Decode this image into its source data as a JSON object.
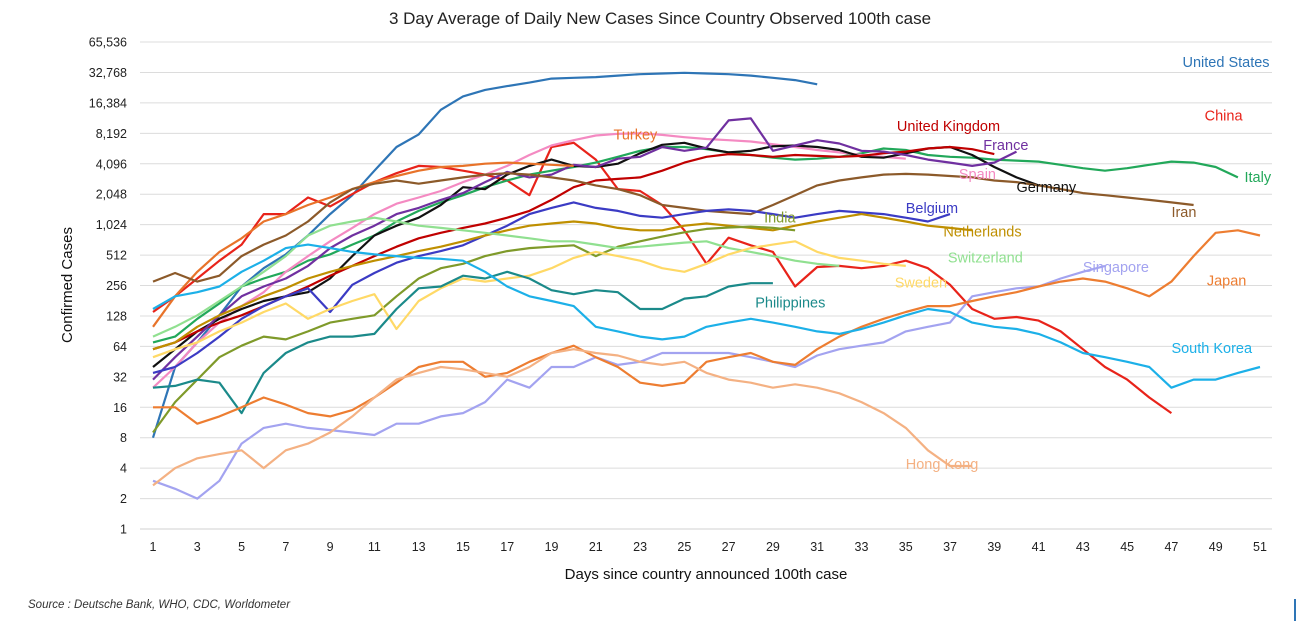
{
  "chart_data": {
    "type": "line",
    "title": "3 Day Average of Daily New Cases Since Country Observed 100th case",
    "xlabel": "Days since country announced 100th case",
    "ylabel": "Confirmed Cases",
    "y_scale": "log2",
    "ylim": [
      1,
      65536
    ],
    "xlim": [
      1,
      51
    ],
    "x_ticks": [
      "1",
      "3",
      "5",
      "7",
      "9",
      "11",
      "13",
      "15",
      "17",
      "19",
      "21",
      "23",
      "25",
      "27",
      "29",
      "31",
      "33",
      "35",
      "37",
      "39",
      "41",
      "43",
      "45",
      "47",
      "49",
      "51"
    ],
    "y_ticks": [
      {
        "value": 1,
        "label": "1"
      },
      {
        "value": 2,
        "label": "2"
      },
      {
        "value": 4,
        "label": "4"
      },
      {
        "value": 8,
        "label": "8"
      },
      {
        "value": 16,
        "label": "16"
      },
      {
        "value": 32,
        "label": "32"
      },
      {
        "value": 64,
        "label": "64"
      },
      {
        "value": 128,
        "label": "128"
      },
      {
        "value": 256,
        "label": "256"
      },
      {
        "value": 512,
        "label": "512"
      },
      {
        "value": 1024,
        "label": "1,024"
      },
      {
        "value": 2048,
        "label": "2,048"
      },
      {
        "value": 4096,
        "label": "4,096"
      },
      {
        "value": 8192,
        "label": "8,192"
      },
      {
        "value": 16384,
        "label": "16,384"
      },
      {
        "value": 32768,
        "label": "32,768"
      },
      {
        "value": 65536,
        "label": "65,536"
      }
    ],
    "grid": true,
    "series": [
      {
        "name": "United States",
        "color": "#2e75b6",
        "label_at": [
          47.5,
          37000
        ],
        "label_anchor": "start",
        "values": [
          8,
          40,
          70,
          130,
          250,
          380,
          520,
          800,
          1300,
          2000,
          3500,
          6000,
          8000,
          14000,
          19000,
          22000,
          24000,
          26000,
          28500,
          29000,
          29500,
          30500,
          31500,
          32000,
          32500,
          32000,
          31500,
          30500,
          29000,
          27500,
          25000
        ]
      },
      {
        "name": "China",
        "color": "#e8231a",
        "label_at": [
          48.5,
          11000
        ],
        "label_anchor": "start",
        "values": [
          140,
          200,
          300,
          450,
          650,
          1300,
          1300,
          1900,
          1550,
          2050,
          2700,
          3300,
          3900,
          3800,
          3500,
          3200,
          2800,
          2000,
          6000,
          6600,
          4500,
          2300,
          2200,
          1600,
          900,
          420,
          760,
          640,
          550,
          250,
          390,
          400,
          380,
          400,
          450,
          380,
          260,
          150,
          120,
          125,
          115,
          90,
          60,
          40,
          30,
          20,
          14
        ]
      },
      {
        "name": "Italy",
        "color": "#22a85a",
        "label_at": [
          50.3,
          2700
        ],
        "label_anchor": "start",
        "values": [
          70,
          80,
          120,
          170,
          250,
          300,
          350,
          450,
          520,
          650,
          800,
          1100,
          1400,
          1700,
          2000,
          2400,
          2800,
          3200,
          3500,
          3800,
          4200,
          4800,
          5500,
          6000,
          6000,
          5700,
          5300,
          5000,
          4700,
          4500,
          4600,
          4800,
          5200,
          5800,
          5600,
          5000,
          4800,
          4700,
          4500,
          4400,
          4300,
          4000,
          3700,
          3500,
          3700,
          4000,
          4300,
          4200,
          3800,
          3000
        ]
      },
      {
        "name": "Spain",
        "color": "#f48ac2",
        "label_at": [
          37.4,
          2900
        ],
        "label_anchor": "start",
        "values": [
          25,
          40,
          70,
          110,
          160,
          220,
          350,
          500,
          700,
          950,
          1300,
          1650,
          1900,
          2200,
          2700,
          3200,
          3900,
          5000,
          6200,
          7000,
          7800,
          8100,
          8200,
          7900,
          7500,
          7200,
          7000,
          6800,
          6400,
          6000,
          5600,
          5300,
          5000,
          4800,
          4600
        ]
      },
      {
        "name": "Germany",
        "color": "#111111",
        "label_at": [
          40,
          2150
        ],
        "label_anchor": "start",
        "values": [
          40,
          60,
          90,
          120,
          150,
          180,
          200,
          220,
          300,
          500,
          800,
          1000,
          1200,
          1600,
          2400,
          2300,
          3200,
          3900,
          4500,
          3900,
          3800,
          4100,
          5200,
          6300,
          6600,
          5800,
          5300,
          5500,
          6100,
          6200,
          6000,
          5600,
          4800,
          4700,
          5200,
          5800,
          6000,
          5000,
          3800,
          3000,
          2500
        ]
      },
      {
        "name": "United Kingdom",
        "color": "#c00000",
        "label_at": [
          34.6,
          8600
        ],
        "label_anchor": "start",
        "values": [
          60,
          70,
          90,
          110,
          130,
          160,
          200,
          250,
          320,
          400,
          500,
          620,
          750,
          850,
          950,
          1050,
          1200,
          1400,
          1800,
          2400,
          2800,
          2900,
          3000,
          3500,
          4200,
          4800,
          5100,
          5000,
          4800,
          5000,
          4900,
          4800,
          4900,
          5200,
          5400,
          5800,
          6000,
          5700,
          5100
        ]
      },
      {
        "name": "France",
        "color": "#7030a0",
        "label_at": [
          38.5,
          5600
        ],
        "label_anchor": "start",
        "values": [
          30,
          50,
          80,
          130,
          200,
          250,
          300,
          400,
          600,
          800,
          1000,
          1300,
          1500,
          1800,
          2100,
          2700,
          3400,
          3000,
          3200,
          4000,
          3800,
          4600,
          4800,
          6000,
          5500,
          5900,
          11000,
          11500,
          5500,
          6200,
          7000,
          6500,
          5500,
          5400,
          5000,
          4500,
          4200,
          3900,
          4200,
          5400
        ]
      },
      {
        "name": "Turkey",
        "color": "#e8732a",
        "label_at": [
          21.8,
          7100
        ],
        "label_anchor": "start",
        "values": [
          100,
          200,
          350,
          550,
          750,
          1100,
          1300,
          1600,
          1900,
          2300,
          2700,
          3100,
          3500,
          3800,
          3900,
          4100,
          4200,
          4100,
          4000,
          3900
        ]
      },
      {
        "name": "Iran",
        "color": "#8c5a2a",
        "label_at": [
          47,
          1220
        ],
        "label_anchor": "start",
        "values": [
          280,
          340,
          280,
          320,
          500,
          650,
          800,
          1100,
          1700,
          2300,
          2600,
          2800,
          2600,
          2800,
          3000,
          3200,
          3300,
          3200,
          3000,
          2800,
          2500,
          2300,
          2000,
          1600,
          1500,
          1400,
          1350,
          1300,
          1600,
          2000,
          2500,
          2800,
          3000,
          3200,
          3250,
          3200,
          3100,
          3000,
          2800,
          2700,
          2500,
          2300,
          2100,
          2000,
          1900,
          1800,
          1700,
          1600
        ]
      },
      {
        "name": "Belgium",
        "color": "#3b3bc4",
        "label_at": [
          35,
          1330
        ],
        "label_anchor": "start",
        "values": [
          35,
          40,
          55,
          80,
          120,
          160,
          200,
          240,
          140,
          260,
          340,
          430,
          500,
          560,
          640,
          800,
          1000,
          1300,
          1500,
          1700,
          1500,
          1400,
          1250,
          1200,
          1300,
          1400,
          1450,
          1400,
          1300,
          1200,
          1300,
          1400,
          1350,
          1300,
          1200,
          1100,
          1300
        ]
      },
      {
        "name": "Netherlands",
        "color": "#bf8f00",
        "label_at": [
          36.7,
          780
        ],
        "label_anchor": "start",
        "values": [
          60,
          70,
          100,
          130,
          160,
          200,
          240,
          300,
          350,
          400,
          450,
          500,
          560,
          620,
          700,
          800,
          900,
          1000,
          1050,
          1100,
          1050,
          950,
          900,
          900,
          1000,
          1050,
          1000,
          950,
          900,
          1000,
          1100,
          1200,
          1300,
          1200,
          1100,
          1000,
          950,
          900
        ]
      },
      {
        "name": "India",
        "color": "#7f9a2a",
        "label_at": [
          28.6,
          1080
        ],
        "label_anchor": "start",
        "values": [
          9,
          18,
          30,
          50,
          65,
          80,
          75,
          90,
          110,
          120,
          130,
          200,
          300,
          380,
          420,
          500,
          560,
          600,
          620,
          640,
          500,
          620,
          700,
          780,
          860,
          930,
          960,
          980,
          950,
          900
        ]
      },
      {
        "name": "Switzerland",
        "color": "#90e090",
        "label_at": [
          36.9,
          430
        ],
        "label_anchor": "start",
        "values": [
          80,
          100,
          130,
          180,
          250,
          350,
          500,
          800,
          1000,
          1100,
          1200,
          1100,
          1000,
          950,
          900,
          850,
          800,
          750,
          700,
          700,
          650,
          600,
          620,
          650,
          680,
          700,
          600,
          550,
          500,
          450,
          420,
          400
        ]
      },
      {
        "name": "Sweden",
        "color": "#ffd966",
        "label_at": [
          34.5,
          245
        ],
        "label_anchor": "start",
        "values": [
          50,
          60,
          70,
          90,
          110,
          140,
          170,
          120,
          150,
          180,
          210,
          95,
          180,
          240,
          300,
          280,
          300,
          320,
          380,
          480,
          550,
          500,
          450,
          380,
          350,
          420,
          520,
          600,
          650,
          700,
          550,
          480,
          450,
          420,
          400
        ]
      },
      {
        "name": "Philippines",
        "color": "#1b8a8a",
        "label_at": [
          28.2,
          155
        ],
        "label_anchor": "start",
        "values": [
          25,
          26,
          30,
          28,
          14,
          35,
          55,
          70,
          80,
          80,
          85,
          150,
          240,
          250,
          320,
          300,
          350,
          300,
          230,
          210,
          230,
          220,
          150,
          150,
          190,
          200,
          250,
          270,
          270
        ]
      },
      {
        "name": "Singapore",
        "color": "#a3a3f0",
        "label_at": [
          43,
          350
        ],
        "label_anchor": "start",
        "values": [
          3,
          2.5,
          2,
          3,
          7,
          10,
          11,
          10,
          9.5,
          9,
          8.5,
          11,
          11,
          13,
          14,
          18,
          30,
          25,
          40,
          40,
          50,
          42,
          45,
          55,
          55,
          55,
          55,
          50,
          45,
          40,
          52,
          60,
          65,
          70,
          90,
          100,
          110,
          200,
          220,
          240,
          250,
          300,
          350,
          400
        ]
      },
      {
        "name": "Japan",
        "color": "#ed7d31",
        "label_at": [
          48.6,
          255
        ],
        "label_anchor": "start",
        "values": [
          16,
          16,
          11,
          13,
          16,
          20,
          17,
          14,
          13,
          15,
          20,
          28,
          40,
          45,
          45,
          32,
          35,
          45,
          55,
          65,
          50,
          40,
          28,
          26,
          28,
          45,
          50,
          55,
          45,
          42,
          60,
          80,
          100,
          120,
          140,
          160,
          160,
          180,
          200,
          220,
          250,
          280,
          300,
          280,
          240,
          200,
          280,
          500,
          850,
          900,
          800
        ]
      },
      {
        "name": "South Korea",
        "color": "#1cb0e8",
        "label_at": [
          47,
          55
        ],
        "label_anchor": "start",
        "values": [
          150,
          200,
          220,
          250,
          350,
          450,
          600,
          650,
          600,
          550,
          520,
          500,
          480,
          470,
          450,
          350,
          250,
          200,
          180,
          160,
          100,
          90,
          80,
          75,
          80,
          100,
          110,
          120,
          110,
          100,
          90,
          85,
          95,
          110,
          130,
          150,
          140,
          110,
          100,
          95,
          85,
          70,
          55,
          50,
          45,
          40,
          25,
          30,
          30,
          35,
          40
        ]
      },
      {
        "name": "Hong Kong",
        "color": "#f4b183",
        "label_at": [
          35,
          3.9
        ],
        "label_anchor": "start",
        "values": [
          2.7,
          4,
          5,
          5.5,
          6,
          4,
          6,
          7,
          9,
          13,
          20,
          30,
          35,
          40,
          38,
          35,
          32,
          40,
          55,
          60,
          55,
          52,
          45,
          42,
          45,
          35,
          30,
          28,
          25,
          27,
          25,
          22,
          18,
          14,
          10,
          6,
          4.2,
          4.2
        ]
      }
    ]
  },
  "source_note": "Source : Deutsche Bank, WHO, CDC, Worldometer"
}
